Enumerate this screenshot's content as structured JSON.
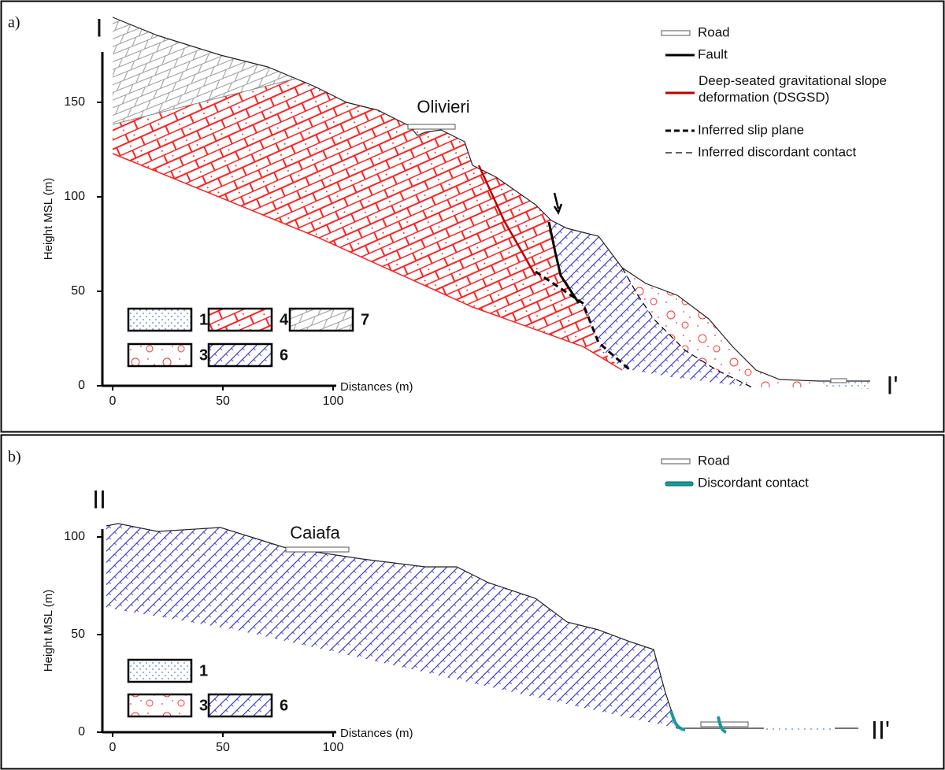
{
  "panels": [
    {
      "label": "a)",
      "section_start": "I",
      "section_end": "I'",
      "place": "Olivieri",
      "y_axis_title": "Height MSL (m)",
      "x_axis_title": "Distances (m)",
      "yticks": [
        0,
        50,
        100,
        150
      ],
      "xticks": [
        0,
        50,
        100
      ],
      "legend": [
        "Road",
        "Fault",
        "Deep-seated gravitational slope deformation (DSGSD)",
        "Inferred slip plane",
        "Inferred discordant contact"
      ],
      "units": [
        "1",
        "4",
        "7",
        "3",
        "6"
      ]
    },
    {
      "label": "b)",
      "section_start": "II",
      "section_end": "II'",
      "place": "Caiafa",
      "y_axis_title": "Height MSL (m)",
      "x_axis_title": "Distances (m)",
      "yticks": [
        0,
        50,
        100
      ],
      "xticks": [
        0,
        50,
        100
      ],
      "legend": [
        "Road",
        "Discordant contact"
      ],
      "units": [
        "1",
        "3",
        "6"
      ]
    }
  ]
}
